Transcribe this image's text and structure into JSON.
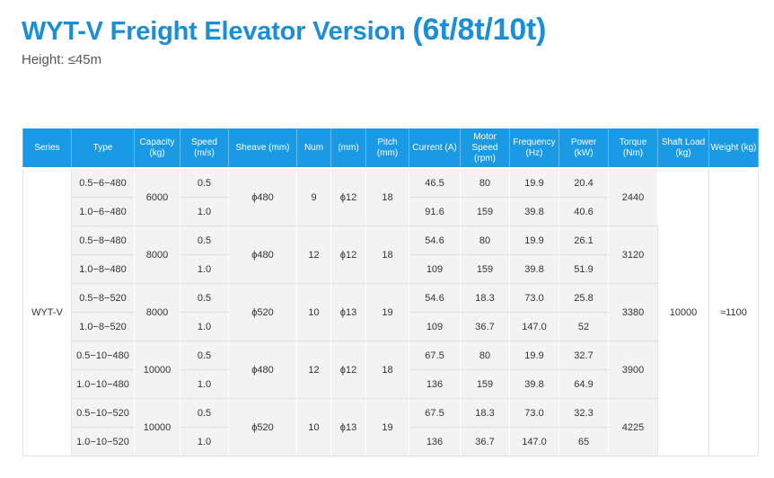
{
  "title_main": "WYT-V Freight Elevator Version",
  "title_capacity": "(6t/8t/10t)",
  "subtitle": "Height: ≤45m",
  "headers": [
    "Series",
    "Type",
    "Capacity (kg)",
    "Speed (m/s)",
    "Sheave (mm)",
    "Num",
    "(mm)",
    "Pitch (mm)",
    "Current (A)",
    "Motor Speed (rpm)",
    "Frequency (Hz)",
    "Power (kW)",
    "Torque (Nm)",
    "Shaft Load (kg)",
    "Weight (kg)"
  ],
  "series": "WYT-V",
  "shaft_load": "10000",
  "weight": "≈1100",
  "groups": [
    {
      "capacity": "6000",
      "sheave": "ϕ480",
      "num": "9",
      "rope": "ϕ12",
      "pitch": "18",
      "torque": "2440",
      "rows": [
        {
          "type": "0.5−6−480",
          "speed": "0.5",
          "current": "46.5",
          "motor_speed": "80",
          "frequency": "19.9",
          "power": "20.4"
        },
        {
          "type": "1.0−6−480",
          "speed": "1.0",
          "current": "91.6",
          "motor_speed": "159",
          "frequency": "39.8",
          "power": "40.6"
        }
      ]
    },
    {
      "capacity": "8000",
      "sheave": "ϕ480",
      "num": "12",
      "rope": "ϕ12",
      "pitch": "18",
      "torque": "3120",
      "rows": [
        {
          "type": "0.5−8−480",
          "speed": "0.5",
          "current": "54.6",
          "motor_speed": "80",
          "frequency": "19.9",
          "power": "26.1"
        },
        {
          "type": "1.0−8−480",
          "speed": "1.0",
          "current": "109",
          "motor_speed": "159",
          "frequency": "39.8",
          "power": "51.9"
        }
      ]
    },
    {
      "capacity": "8000",
      "sheave": "ϕ520",
      "num": "10",
      "rope": "ϕ13",
      "pitch": "19",
      "torque": "3380",
      "rows": [
        {
          "type": "0.5−8−520",
          "speed": "0.5",
          "current": "54.6",
          "motor_speed": "18.3",
          "frequency": "73.0",
          "power": "25.8"
        },
        {
          "type": "1.0−8−520",
          "speed": "1.0",
          "current": "109",
          "motor_speed": "36.7",
          "frequency": "147.0",
          "power": "52"
        }
      ]
    },
    {
      "capacity": "10000",
      "sheave": "ϕ480",
      "num": "12",
      "rope": "ϕ12",
      "pitch": "18",
      "torque": "3900",
      "rows": [
        {
          "type": "0.5−10−480",
          "speed": "0.5",
          "current": "67.5",
          "motor_speed": "80",
          "frequency": "19.9",
          "power": "32.7"
        },
        {
          "type": "1.0−10−480",
          "speed": "1.0",
          "current": "136",
          "motor_speed": "159",
          "frequency": "39.8",
          "power": "64.9"
        }
      ]
    },
    {
      "capacity": "10000",
      "sheave": "ϕ520",
      "num": "10",
      "rope": "ϕ13",
      "pitch": "19",
      "torque": "4225",
      "rows": [
        {
          "type": "0.5−10−520",
          "speed": "0.5",
          "current": "67.5",
          "motor_speed": "18.3",
          "frequency": "73.0",
          "power": "32.3"
        },
        {
          "type": "1.0−10−520",
          "speed": "1.0",
          "current": "136",
          "motor_speed": "36.7",
          "frequency": "147.0",
          "power": "65"
        }
      ]
    }
  ],
  "colors": {
    "accent": "#1a8fd8",
    "header_bg": "#1a9ae5",
    "cell_bg": "#f3f3f3"
  }
}
